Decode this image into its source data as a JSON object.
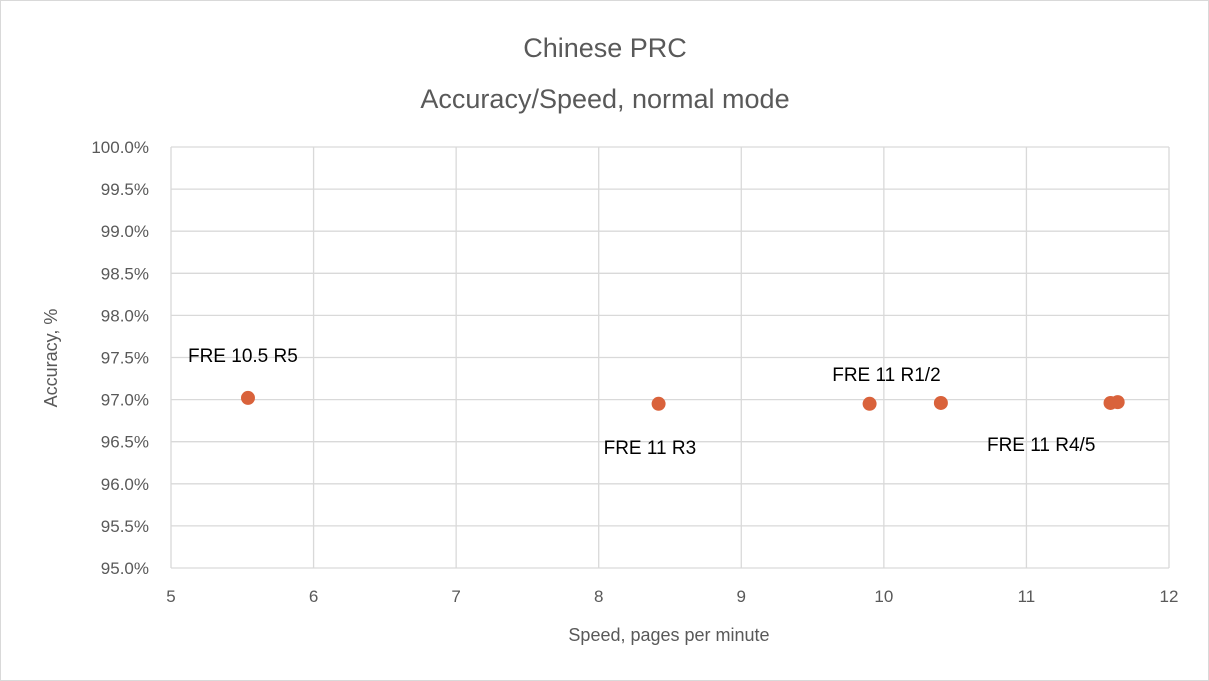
{
  "chart_data": {
    "type": "scatter",
    "title": "Chinese PRC",
    "subtitle": "Accuracy/Speed, normal mode",
    "xlabel": "Speed, pages per minute",
    "ylabel": "Accuracy, %",
    "xlim": [
      5,
      12
    ],
    "ylim": [
      95.0,
      100.0
    ],
    "x_ticks": [
      "5",
      "6",
      "7",
      "8",
      "9",
      "10",
      "11",
      "12"
    ],
    "y_ticks": [
      "95.0%",
      "95.5%",
      "96.0%",
      "96.5%",
      "97.0%",
      "97.5%",
      "98.0%",
      "98.5%",
      "99.0%",
      "99.5%",
      "100.0%"
    ],
    "grid": true,
    "marker_color": "#D9623B",
    "points": [
      {
        "x": 5.54,
        "y": 97.02
      },
      {
        "x": 8.42,
        "y": 96.95
      },
      {
        "x": 9.9,
        "y": 96.95
      },
      {
        "x": 10.4,
        "y": 96.96
      },
      {
        "x": 11.59,
        "y": 96.96
      },
      {
        "x": 11.64,
        "y": 96.97
      }
    ],
    "annotations": [
      {
        "text": "FRE 10.5 R5",
        "x": 5.54,
        "y": 97.02,
        "dx": -60,
        "dy": -36
      },
      {
        "text": "FRE 11 R3",
        "x": 8.42,
        "y": 96.95,
        "dx": -55,
        "dy": 50
      },
      {
        "text": "FRE 11 R1/2",
        "x": 10.15,
        "y": 96.96,
        "dx": -73,
        "dy": -22
      },
      {
        "text": "FRE 11 R4/5",
        "x": 11.6,
        "y": 96.96,
        "dx": -125,
        "dy": 48
      }
    ]
  }
}
